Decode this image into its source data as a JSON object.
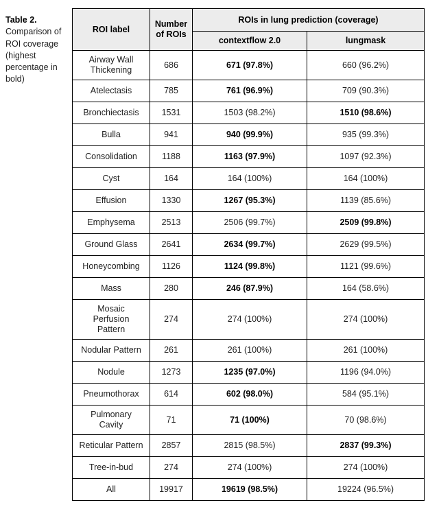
{
  "caption": {
    "title": "Table 2.",
    "text": "Comparison of ROI coverage (highest percentage in bold)"
  },
  "table": {
    "headers": {
      "roi_label": "ROI label",
      "num_rois": "Number of ROIs",
      "span": "ROIs in lung prediction (coverage)",
      "col_contextflow": "contextflow 2.0",
      "col_lungmask": "lungmask"
    },
    "rows": [
      {
        "label": "Airway Wall\nThickening",
        "n": "686",
        "contextflow": "671 (97.8%)",
        "cf_bold": true,
        "lungmask": "660 (96.2%)",
        "lm_bold": false
      },
      {
        "label": "Atelectasis",
        "n": "785",
        "contextflow": "761 (96.9%)",
        "cf_bold": true,
        "lungmask": "709 (90.3%)",
        "lm_bold": false
      },
      {
        "label": "Bronchiectasis",
        "n": "1531",
        "contextflow": "1503 (98.2%)",
        "cf_bold": false,
        "lungmask": "1510 (98.6%)",
        "lm_bold": true
      },
      {
        "label": "Bulla",
        "n": "941",
        "contextflow": "940 (99.9%)",
        "cf_bold": true,
        "lungmask": "935 (99.3%)",
        "lm_bold": false
      },
      {
        "label": "Consolidation",
        "n": "1188",
        "contextflow": "1163 (97.9%)",
        "cf_bold": true,
        "lungmask": "1097 (92.3%)",
        "lm_bold": false
      },
      {
        "label": "Cyst",
        "n": "164",
        "contextflow": "164 (100%)",
        "cf_bold": false,
        "lungmask": "164 (100%)",
        "lm_bold": false
      },
      {
        "label": "Effusion",
        "n": "1330",
        "contextflow": "1267 (95.3%)",
        "cf_bold": true,
        "lungmask": "1139 (85.6%)",
        "lm_bold": false
      },
      {
        "label": "Emphysema",
        "n": "2513",
        "contextflow": "2506 (99.7%)",
        "cf_bold": false,
        "lungmask": "2509 (99.8%)",
        "lm_bold": true
      },
      {
        "label": "Ground Glass",
        "n": "2641",
        "contextflow": "2634 (99.7%)",
        "cf_bold": true,
        "lungmask": "2629 (99.5%)",
        "lm_bold": false
      },
      {
        "label": "Honeycombing",
        "n": "1126",
        "contextflow": "1124 (99.8%)",
        "cf_bold": true,
        "lungmask": "1121 (99.6%)",
        "lm_bold": false
      },
      {
        "label": "Mass",
        "n": "280",
        "contextflow": "246 (87.9%)",
        "cf_bold": true,
        "lungmask": "164 (58.6%)",
        "lm_bold": false
      },
      {
        "label": "Mosaic\nPerfusion\nPattern",
        "n": "274",
        "contextflow": "274 (100%)",
        "cf_bold": false,
        "lungmask": "274 (100%)",
        "lm_bold": false
      },
      {
        "label": "Nodular Pattern",
        "n": "261",
        "contextflow": "261 (100%)",
        "cf_bold": false,
        "lungmask": "261 (100%)",
        "lm_bold": false
      },
      {
        "label": "Nodule",
        "n": "1273",
        "contextflow": "1235 (97.0%)",
        "cf_bold": true,
        "lungmask": "1196 (94.0%)",
        "lm_bold": false
      },
      {
        "label": "Pneumothorax",
        "n": "614",
        "contextflow": "602 (98.0%)",
        "cf_bold": true,
        "lungmask": "584 (95.1%)",
        "lm_bold": false
      },
      {
        "label": "Pulmonary\nCavity",
        "n": "71",
        "contextflow": "71 (100%)",
        "cf_bold": true,
        "lungmask": "70 (98.6%)",
        "lm_bold": false
      },
      {
        "label": "Reticular Pattern",
        "n": "2857",
        "contextflow": "2815 (98.5%)",
        "cf_bold": false,
        "lungmask": "2837 (99.3%)",
        "lm_bold": true
      },
      {
        "label": "Tree-in-bud",
        "n": "274",
        "contextflow": "274 (100%)",
        "cf_bold": false,
        "lungmask": "274 (100%)",
        "lm_bold": false
      },
      {
        "label": "All",
        "n": "19917",
        "contextflow": "19619 (98.5%)",
        "cf_bold": true,
        "lungmask": "19224 (96.5%)",
        "lm_bold": false
      }
    ]
  }
}
